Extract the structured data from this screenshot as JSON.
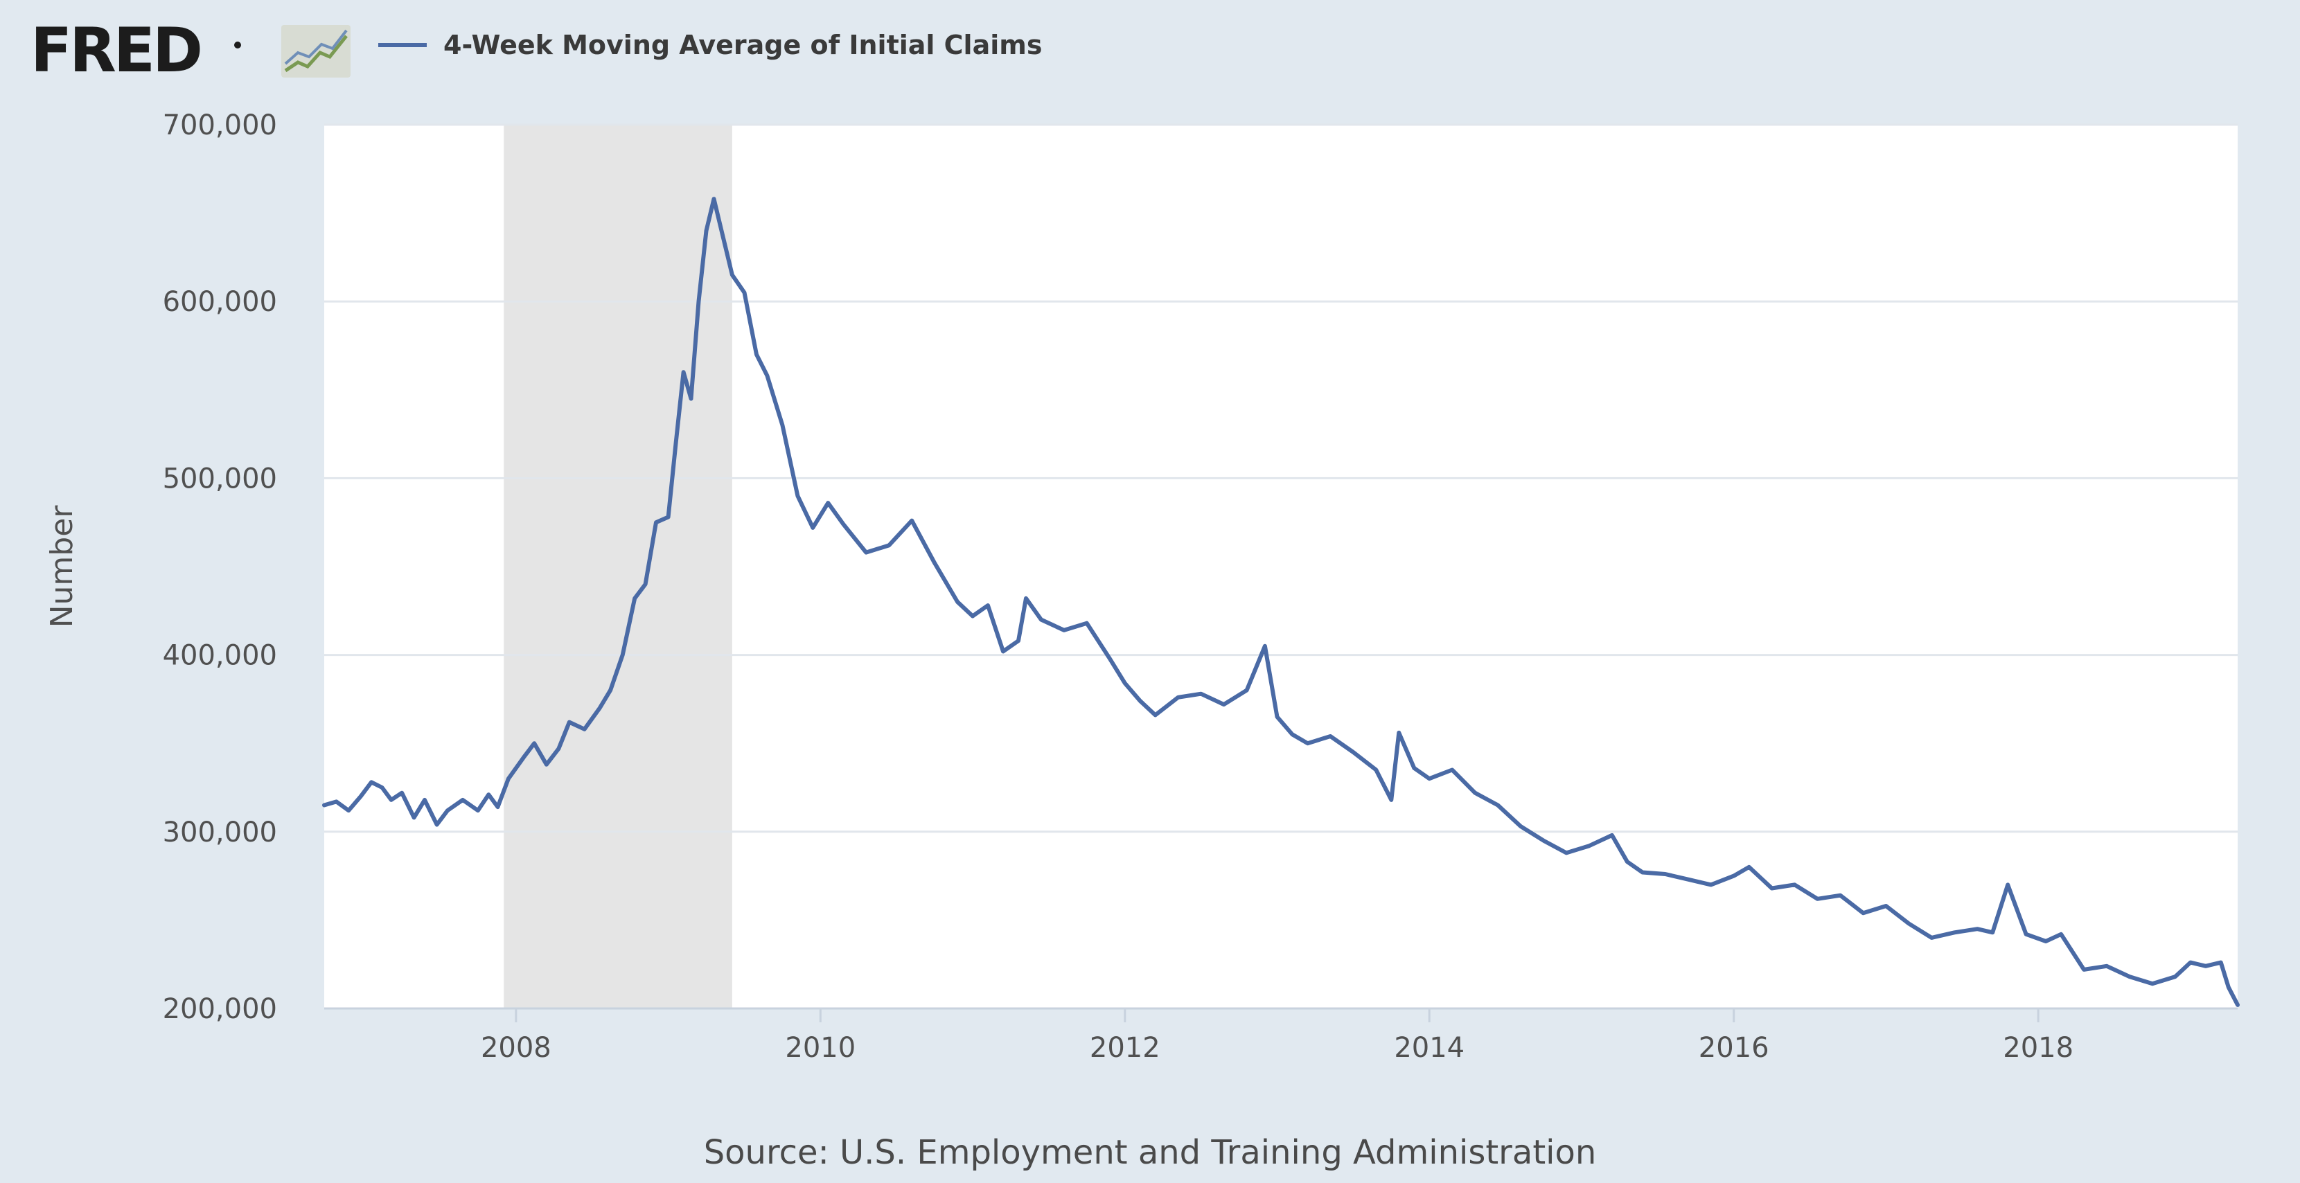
{
  "header": {
    "logo_text": "FRED",
    "legend_label": "4-Week Moving Average of Initial Claims"
  },
  "colors": {
    "background": "#e1e9f0",
    "plot_background": "#ffffff",
    "line": "#4a6aa5",
    "recession_shade": "#e5e5e5",
    "gridline": "#e1e6ec"
  },
  "icons": {
    "logo_graph": "sparkline-graph-icon"
  },
  "source_text": "Source: U.S. Employment and Training Administration",
  "chart_data": {
    "type": "line",
    "title": "",
    "xlabel": "",
    "ylabel": "Number",
    "xlim": [
      2006.74,
      2019.31
    ],
    "ylim": [
      200000,
      700000
    ],
    "y_ticks": [
      200000,
      300000,
      400000,
      500000,
      600000,
      700000
    ],
    "y_tick_labels": [
      "200,000",
      "300,000",
      "400,000",
      "500,000",
      "600,000",
      "700,000"
    ],
    "x_ticks": [
      2008,
      2010,
      2012,
      2014,
      2016,
      2018
    ],
    "x_tick_labels": [
      "2008",
      "2010",
      "2012",
      "2014",
      "2016",
      "2018"
    ],
    "grid": "horizontal",
    "legend_position": "top",
    "recession_shading": [
      [
        2007.92,
        2009.42
      ]
    ],
    "series": [
      {
        "name": "4-Week Moving Average of Initial Claims",
        "x": [
          2006.74,
          2006.82,
          2006.9,
          2006.98,
          2007.05,
          2007.12,
          2007.18,
          2007.25,
          2007.33,
          2007.4,
          2007.48,
          2007.55,
          2007.65,
          2007.75,
          2007.82,
          2007.88,
          2007.95,
          2008.05,
          2008.12,
          2008.2,
          2008.28,
          2008.35,
          2008.45,
          2008.55,
          2008.62,
          2008.7,
          2008.78,
          2008.85,
          2008.92,
          2009.0,
          2009.05,
          2009.1,
          2009.15,
          2009.2,
          2009.25,
          2009.3,
          2009.35,
          2009.42,
          2009.5,
          2009.58,
          2009.65,
          2009.75,
          2009.85,
          2009.95,
          2010.05,
          2010.15,
          2010.3,
          2010.45,
          2010.6,
          2010.75,
          2010.9,
          2011.0,
          2011.1,
          2011.2,
          2011.3,
          2011.35,
          2011.45,
          2011.6,
          2011.75,
          2011.9,
          2012.0,
          2012.1,
          2012.2,
          2012.35,
          2012.5,
          2012.65,
          2012.8,
          2012.92,
          2013.0,
          2013.1,
          2013.2,
          2013.35,
          2013.5,
          2013.65,
          2013.75,
          2013.8,
          2013.9,
          2014.0,
          2014.15,
          2014.3,
          2014.45,
          2014.6,
          2014.75,
          2014.9,
          2015.05,
          2015.2,
          2015.3,
          2015.4,
          2015.55,
          2015.7,
          2015.85,
          2016.0,
          2016.1,
          2016.25,
          2016.4,
          2016.55,
          2016.7,
          2016.85,
          2017.0,
          2017.15,
          2017.3,
          2017.45,
          2017.6,
          2017.7,
          2017.8,
          2017.92,
          2018.05,
          2018.15,
          2018.3,
          2018.45,
          2018.6,
          2018.75,
          2018.9,
          2019.0,
          2019.1,
          2019.2,
          2019.25,
          2019.31
        ],
        "values": [
          315000,
          317000,
          312000,
          320000,
          328000,
          325000,
          318000,
          322000,
          308000,
          318000,
          304000,
          312000,
          318000,
          312000,
          321000,
          314000,
          330000,
          342000,
          350000,
          338000,
          347000,
          362000,
          358000,
          370000,
          380000,
          400000,
          432000,
          440000,
          475000,
          478000,
          520000,
          560000,
          545000,
          600000,
          640000,
          658000,
          640000,
          615000,
          605000,
          570000,
          558000,
          530000,
          490000,
          472000,
          486000,
          474000,
          458000,
          462000,
          476000,
          452000,
          430000,
          422000,
          428000,
          402000,
          408000,
          432000,
          420000,
          414000,
          418000,
          398000,
          384000,
          374000,
          366000,
          376000,
          378000,
          372000,
          380000,
          405000,
          365000,
          355000,
          350000,
          354000,
          345000,
          335000,
          318000,
          356000,
          336000,
          330000,
          335000,
          322000,
          315000,
          303000,
          295000,
          288000,
          292000,
          298000,
          283000,
          277000,
          276000,
          273000,
          270000,
          275000,
          280000,
          268000,
          270000,
          262000,
          264000,
          254000,
          258000,
          248000,
          240000,
          243000,
          245000,
          243000,
          270000,
          242000,
          238000,
          242000,
          222000,
          224000,
          218000,
          214000,
          218000,
          226000,
          224000,
          226000,
          212000,
          202000
        ]
      }
    ]
  }
}
